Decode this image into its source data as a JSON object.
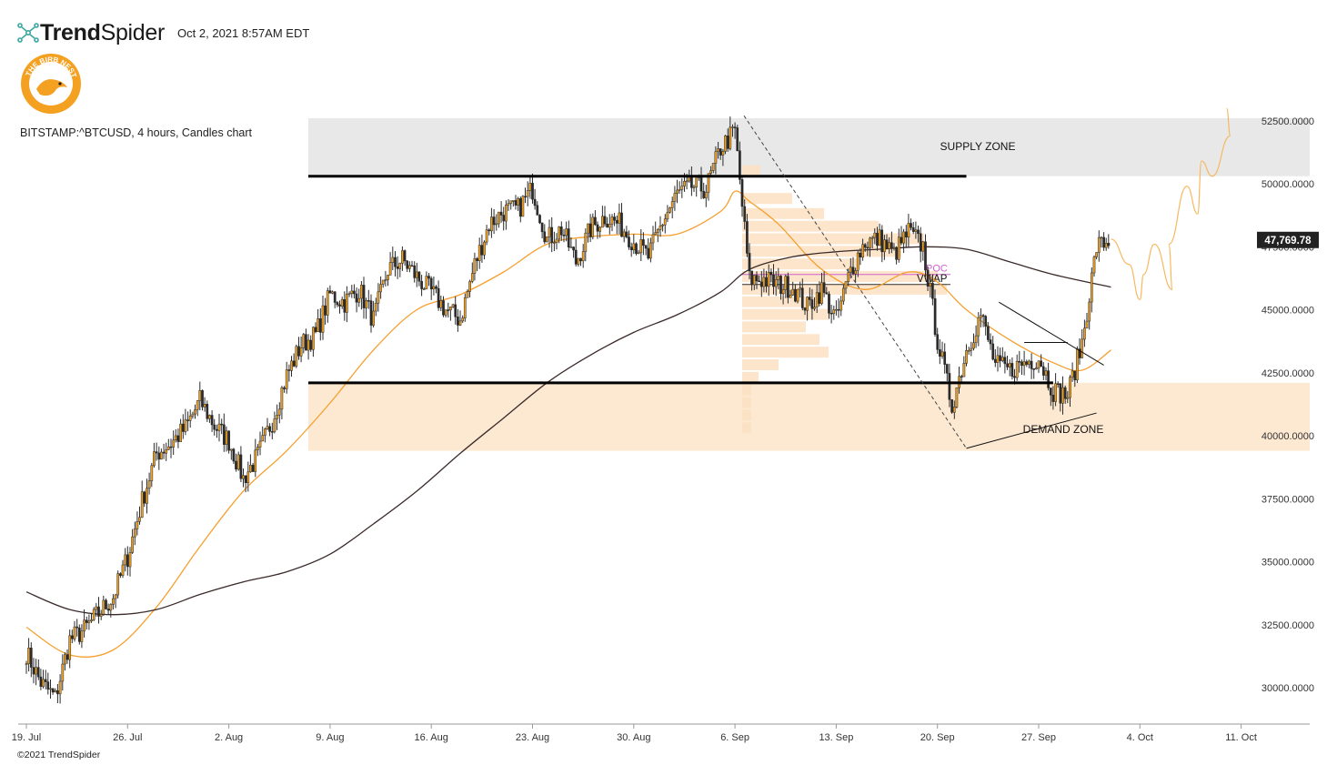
{
  "header": {
    "brand_bold": "Trend",
    "brand_light": "Spider",
    "timestamp": "Oct 2, 2021 8:57AM EDT"
  },
  "logo": {
    "text": "THE BIRB NEST",
    "icon": "bird-logo-icon",
    "color": "#f5a623"
  },
  "symbol_info": "BITSTAMP:^BTCUSD, 4 hours, Candles chart",
  "copyright": "©2021 TrendSpider",
  "colors": {
    "candle": "#2b2b2b",
    "candle_body_up": "#f0a020",
    "ema_short": "#f5a030",
    "ma_long": "#3a2a2a",
    "supply_zone": "#e8e8e8",
    "demand_zone": "#fde9d2",
    "volume_profile": "#fbe0c2",
    "price_tag_bg": "#222222"
  },
  "chart_data": {
    "type": "candlestick",
    "title": "BITSTAMP:^BTCUSD, 4 hours, Candles chart",
    "x_ticks": [
      "19. Jul",
      "26. Jul",
      "2. Aug",
      "9. Aug",
      "16. Aug",
      "23. Aug",
      "30. Aug",
      "6. Sep",
      "13. Sep",
      "20. Sep",
      "27. Sep",
      "4. Oct",
      "11. Oct"
    ],
    "y_ticks": [
      "30000.0000",
      "32500.0000",
      "35000.0000",
      "37500.0000",
      "40000.0000",
      "42500.0000",
      "45000.0000",
      "47500.0000",
      "50000.0000",
      "52500.0000"
    ],
    "ylim": [
      29000,
      53000
    ],
    "x_range_days": [
      "2021-07-19",
      "2021-10-12"
    ],
    "last_price": "47,769.78",
    "price_path": [
      [
        "07-19",
        31400
      ],
      [
        "07-20",
        30200
      ],
      [
        "07-21",
        29600
      ],
      [
        "07-22",
        31900
      ],
      [
        "07-23",
        32300
      ],
      [
        "07-25",
        33600
      ],
      [
        "07-26",
        35200
      ],
      [
        "07-27",
        37400
      ],
      [
        "07-28",
        39300
      ],
      [
        "07-29",
        39700
      ],
      [
        "07-30",
        40300
      ],
      [
        "07-31",
        41400
      ],
      [
        "08-01",
        40400
      ],
      [
        "08-02",
        39800
      ],
      [
        "08-03",
        38300
      ],
      [
        "08-04",
        39200
      ],
      [
        "08-05",
        40600
      ],
      [
        "08-06",
        42400
      ],
      [
        "08-07",
        43600
      ],
      [
        "08-08",
        44000
      ],
      [
        "08-09",
        45600
      ],
      [
        "08-10",
        45300
      ],
      [
        "08-11",
        45800
      ],
      [
        "08-12",
        44600
      ],
      [
        "08-13",
        46600
      ],
      [
        "08-14",
        47000
      ],
      [
        "08-15",
        46300
      ],
      [
        "08-16",
        45700
      ],
      [
        "08-17",
        45000
      ],
      [
        "08-18",
        44600
      ],
      [
        "08-19",
        46800
      ],
      [
        "08-20",
        48400
      ],
      [
        "08-21",
        48900
      ],
      [
        "08-22",
        49000
      ],
      [
        "08-23",
        49800
      ],
      [
        "08-24",
        47800
      ],
      [
        "08-25",
        48200
      ],
      [
        "08-26",
        46900
      ],
      [
        "08-27",
        48200
      ],
      [
        "08-28",
        48700
      ],
      [
        "08-29",
        48400
      ],
      [
        "08-30",
        47700
      ],
      [
        "08-31",
        47100
      ],
      [
        "09-01",
        48500
      ],
      [
        "09-02",
        49600
      ],
      [
        "09-03",
        49900
      ],
      [
        "09-04",
        49800
      ],
      [
        "09-05",
        51400
      ],
      [
        "09-06",
        52100
      ],
      [
        "09-07",
        46200
      ],
      [
        "09-08",
        46200
      ],
      [
        "09-09",
        46000
      ],
      [
        "09-10",
        45900
      ],
      [
        "09-11",
        45100
      ],
      [
        "09-12",
        45800
      ],
      [
        "09-13",
        44600
      ],
      [
        "09-14",
        46600
      ],
      [
        "09-15",
        47700
      ],
      [
        "09-16",
        47800
      ],
      [
        "09-17",
        47200
      ],
      [
        "09-18",
        48100
      ],
      [
        "09-19",
        47500
      ],
      [
        "09-20",
        43800
      ],
      [
        "09-21",
        41200
      ],
      [
        "09-22",
        43400
      ],
      [
        "09-23",
        44800
      ],
      [
        "09-24",
        42800
      ],
      [
        "09-25",
        42600
      ],
      [
        "09-26",
        42900
      ],
      [
        "09-27",
        43100
      ],
      [
        "09-28",
        41800
      ],
      [
        "09-29",
        41600
      ],
      [
        "09-30",
        43700
      ],
      [
        "10-01",
        47500
      ],
      [
        "10-02",
        47770
      ]
    ],
    "ema_short_path": [
      [
        "07-19",
        32400
      ],
      [
        "07-22",
        31300
      ],
      [
        "07-25",
        31500
      ],
      [
        "07-28",
        33200
      ],
      [
        "07-31",
        35600
      ],
      [
        "08-03",
        37800
      ],
      [
        "08-06",
        39400
      ],
      [
        "08-09",
        41300
      ],
      [
        "08-12",
        43400
      ],
      [
        "08-15",
        45000
      ],
      [
        "08-18",
        45600
      ],
      [
        "08-21",
        46500
      ],
      [
        "08-24",
        47600
      ],
      [
        "08-27",
        47900
      ],
      [
        "08-30",
        48000
      ],
      [
        "09-02",
        48000
      ],
      [
        "09-05",
        48900
      ],
      [
        "09-06",
        49700
      ],
      [
        "09-07",
        49300
      ],
      [
        "09-09",
        48400
      ],
      [
        "09-12",
        46600
      ],
      [
        "09-15",
        45800
      ],
      [
        "09-18",
        46500
      ],
      [
        "09-20",
        46100
      ],
      [
        "09-22",
        45000
      ],
      [
        "09-25",
        43800
      ],
      [
        "09-28",
        42900
      ],
      [
        "09-30",
        42600
      ],
      [
        "10-02",
        43400
      ]
    ],
    "ma_long_path": [
      [
        "07-19",
        33800
      ],
      [
        "07-22",
        33100
      ],
      [
        "07-25",
        32900
      ],
      [
        "07-28",
        33100
      ],
      [
        "07-31",
        33700
      ],
      [
        "08-03",
        34200
      ],
      [
        "08-06",
        34600
      ],
      [
        "08-09",
        35300
      ],
      [
        "08-12",
        36500
      ],
      [
        "08-15",
        37800
      ],
      [
        "08-18",
        39300
      ],
      [
        "08-21",
        40700
      ],
      [
        "08-24",
        42100
      ],
      [
        "08-27",
        43200
      ],
      [
        "08-30",
        44100
      ],
      [
        "09-02",
        44800
      ],
      [
        "09-05",
        45700
      ],
      [
        "09-07",
        46600
      ],
      [
        "09-10",
        47100
      ],
      [
        "09-13",
        47300
      ],
      [
        "09-16",
        47400
      ],
      [
        "09-19",
        47500
      ],
      [
        "09-22",
        47400
      ],
      [
        "09-25",
        46900
      ],
      [
        "09-28",
        46400
      ],
      [
        "10-02",
        45900
      ]
    ],
    "projection_path": [
      [
        "10-02",
        47800
      ],
      [
        "10-03",
        46800
      ],
      [
        "10-04",
        45400
      ],
      [
        "10-04",
        46400
      ],
      [
        "10-05",
        47600
      ],
      [
        "10-06",
        45800
      ],
      [
        "10-06",
        47600
      ],
      [
        "10-07",
        49900
      ],
      [
        "10-08",
        48800
      ],
      [
        "10-08",
        50900
      ],
      [
        "10-09",
        50300
      ],
      [
        "10-10",
        51900
      ],
      [
        "10-10",
        53000
      ]
    ],
    "zones": [
      {
        "name": "SUPPLY ZONE",
        "from": 50300,
        "to": 52600,
        "start": "08-08"
      },
      {
        "name": "DEMAND ZONE",
        "from": 39400,
        "to": 42100,
        "start": "08-08"
      }
    ],
    "annotations": {
      "vwap": "VWAP",
      "poc": "POC"
    },
    "levels": [
      {
        "price": 50300,
        "from": "08-08",
        "to": "09-22"
      },
      {
        "price": 42100,
        "from": "08-08",
        "to": "09-28"
      }
    ]
  }
}
